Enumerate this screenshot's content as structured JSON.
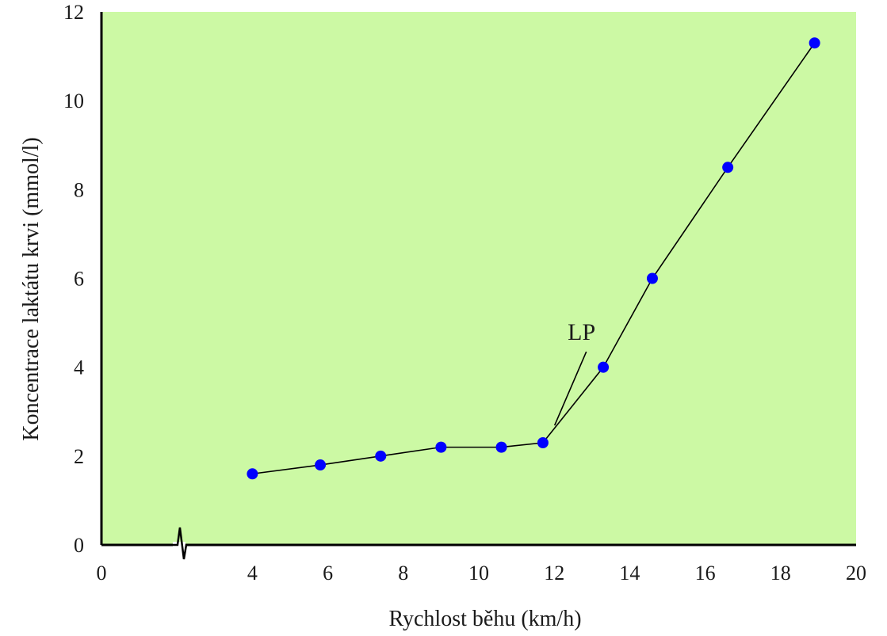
{
  "chart_data": {
    "type": "line",
    "title": "",
    "xlabel": "Rychlost běhu (km/h)",
    "ylabel": "Koncentrace laktátu krvi (mmol/l)",
    "xlim": [
      0,
      20
    ],
    "ylim": [
      0,
      12
    ],
    "x_ticks": [
      "0",
      "4",
      "6",
      "8",
      "10",
      "12",
      "14",
      "16",
      "18",
      "20"
    ],
    "y_ticks": [
      "0",
      "2",
      "4",
      "6",
      "8",
      "10",
      "12"
    ],
    "axis_break": "x",
    "plot_background": "#ccf9a4",
    "line_color": "#000000",
    "marker_color": "#0000ff",
    "grid": false,
    "series": [
      {
        "x": [
          4.0,
          5.8,
          7.4,
          9.0,
          10.6,
          11.7,
          13.3,
          14.6,
          16.6,
          18.9
        ],
        "y": [
          1.6,
          1.8,
          2.0,
          2.2,
          2.2,
          2.3,
          4.0,
          6.0,
          8.5,
          11.3
        ]
      }
    ],
    "annotations": [
      {
        "text": "LP",
        "x": 11.8,
        "y": 2.3
      }
    ]
  }
}
